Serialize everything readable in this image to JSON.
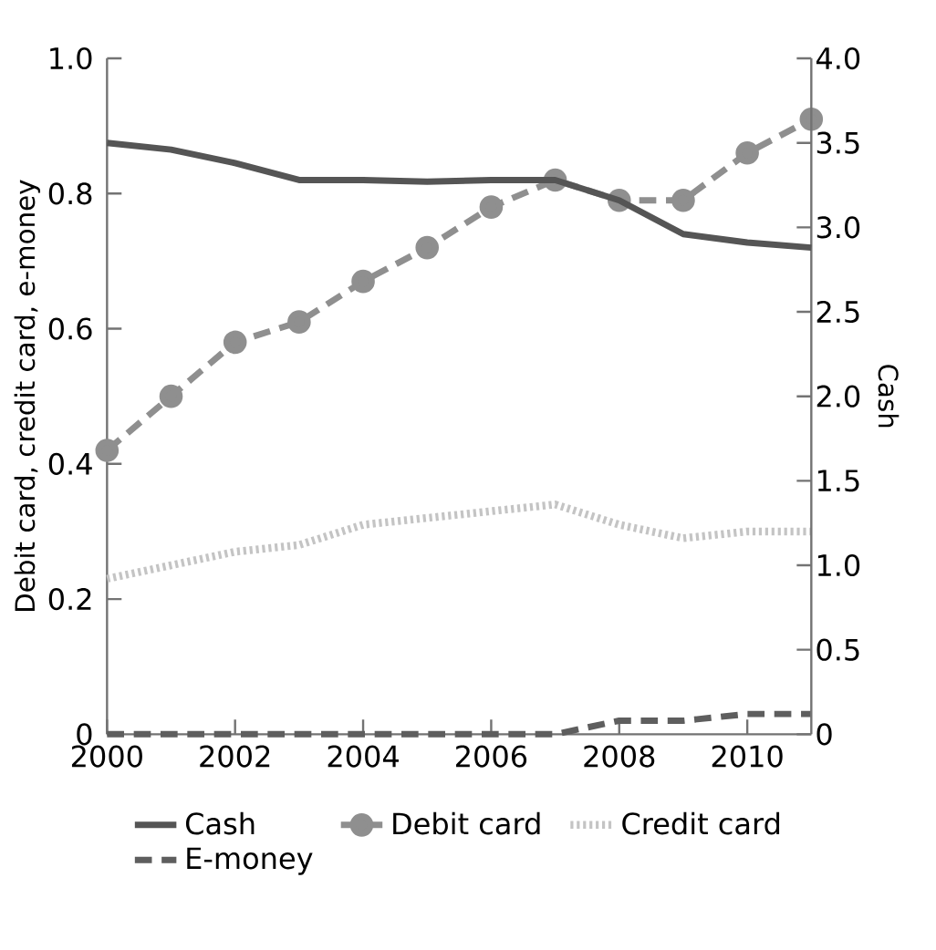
{
  "chart_data": {
    "type": "line",
    "ylabel": "Debit card, credit card, e-money",
    "y2label": "Cash",
    "x": [
      2000,
      2001,
      2002,
      2003,
      2004,
      2005,
      2006,
      2007,
      2008,
      2009,
      2010,
      2011
    ],
    "series": [
      {
        "name": "Cash",
        "color": "#555555",
        "axis": "y2",
        "line_style": "solid",
        "marker": "none",
        "values": [
          3.5,
          3.46,
          3.38,
          3.28,
          3.28,
          3.27,
          3.28,
          3.28,
          3.16,
          2.96,
          2.91,
          2.88
        ]
      },
      {
        "name": "Debit card",
        "color": "#8f8f8f",
        "line_style": "dashed",
        "marker": "circle",
        "values": [
          0.42,
          0.5,
          0.58,
          0.61,
          0.67,
          0.72,
          0.78,
          0.82,
          0.79,
          0.79,
          0.86,
          0.91
        ]
      },
      {
        "name": "Credit card",
        "color": "#c4c4c4",
        "line_style": "dotted",
        "marker": "none",
        "values": [
          0.23,
          0.25,
          0.27,
          0.28,
          0.31,
          0.32,
          0.33,
          0.34,
          0.31,
          0.29,
          0.3,
          0.3
        ]
      },
      {
        "name": "E-money",
        "color": "#5e5e5e",
        "line_style": "dashed",
        "marker": "none",
        "values": [
          0,
          0,
          0,
          0,
          0,
          0,
          0,
          0,
          0.02,
          0.02,
          0.03,
          0.03
        ]
      }
    ],
    "xlim": [
      2000,
      2011
    ],
    "xticks": [
      2000,
      2002,
      2004,
      2006,
      2008,
      2010
    ],
    "ylim": [
      0,
      1
    ],
    "yticks": [
      0,
      0.2,
      0.4,
      0.6,
      0.8,
      {
        "value": 1,
        "label": "1.0"
      }
    ],
    "y2lim": [
      0,
      4
    ],
    "y2ticks": [
      0,
      0.5,
      {
        "value": 1,
        "label": "1.0"
      },
      1.5,
      {
        "value": 2,
        "label": "2.0"
      },
      2.5,
      {
        "value": 3,
        "label": "3.0"
      },
      3.5,
      {
        "value": 4,
        "label": "4.0"
      }
    ],
    "legend": "bottom",
    "grid": false
  }
}
